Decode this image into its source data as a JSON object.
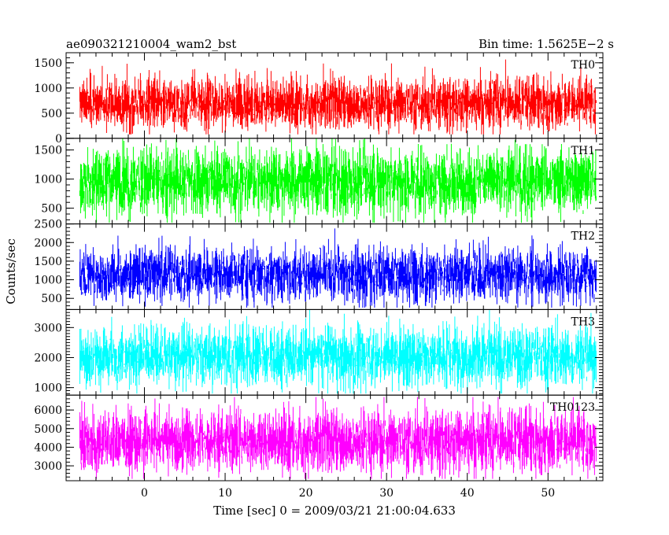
{
  "header": {
    "left_title": "ae090321210004_wam2_bst",
    "right_title": "Bin time: 1.5625E−2 s"
  },
  "chart_data": {
    "type": "line",
    "title": "ae090321210004_wam2_bst",
    "subtitle": "Bin time: 1.5625E−2 s",
    "xlabel": "Time [sec] 0 = 2009/03/21 21:00:04.633",
    "ylabel": "Counts/sec",
    "xlim": [
      -9.7,
      56.8
    ],
    "data_x_range": [
      -8.0,
      56.0
    ],
    "bin_time": 0.015625,
    "x_ticks": [
      0,
      10,
      20,
      30,
      40,
      50
    ],
    "grid": false,
    "series": [
      {
        "name": "TH0",
        "color": "#ff0000",
        "ylim": [
          0,
          1700
        ],
        "y_ticks": [
          0,
          500,
          1000,
          1500
        ],
        "mean": 700,
        "min": 80,
        "max": 1700
      },
      {
        "name": "TH1",
        "color": "#00ff00",
        "ylim": [
          230,
          1700
        ],
        "y_ticks": [
          500,
          1000,
          1500
        ],
        "mean": 960,
        "min": 250,
        "max": 1700
      },
      {
        "name": "TH2",
        "color": "#0000ff",
        "ylim": [
          200,
          2500
        ],
        "y_ticks": [
          500,
          1000,
          1500,
          2000,
          2500
        ],
        "mean": 1150,
        "min": 250,
        "max": 2500
      },
      {
        "name": "TH3",
        "color": "#00ffff",
        "ylim": [
          750,
          3600
        ],
        "y_ticks": [
          1000,
          2000,
          3000
        ],
        "mean": 2050,
        "min": 800,
        "max": 3600
      },
      {
        "name": "TH0123",
        "color": "#ff00ff",
        "ylim": [
          2200,
          6800
        ],
        "y_ticks": [
          3000,
          4000,
          5000,
          6000
        ],
        "mean": 4350,
        "min": 2300,
        "max": 6700
      }
    ]
  }
}
